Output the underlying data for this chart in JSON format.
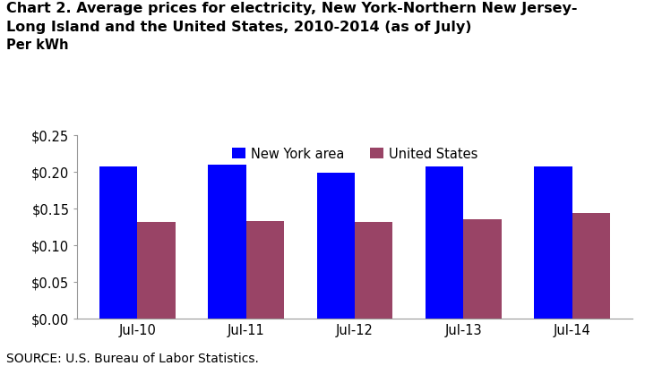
{
  "title_line1": "Chart 2. Average prices for electricity, New York-Northern New Jersey-",
  "title_line2": "Long Island and the United States, 2010-2014 (as of July)",
  "per_kwh": "Per kWh",
  "categories": [
    "Jul-10",
    "Jul-11",
    "Jul-12",
    "Jul-13",
    "Jul-14"
  ],
  "ny_values": [
    0.207,
    0.209,
    0.199,
    0.207,
    0.207
  ],
  "us_values": [
    0.131,
    0.133,
    0.131,
    0.135,
    0.143
  ],
  "ny_color": "#0000FF",
  "us_color": "#994466",
  "ylim": [
    0,
    0.25
  ],
  "yticks": [
    0.0,
    0.05,
    0.1,
    0.15,
    0.2,
    0.25
  ],
  "legend_labels": [
    "New York area",
    "United States"
  ],
  "source": "SOURCE: U.S. Bureau of Labor Statistics.",
  "bar_width": 0.35,
  "background_color": "#FFFFFF",
  "title_fontsize": 11.5,
  "label_fontsize": 10.5,
  "tick_fontsize": 10.5,
  "source_fontsize": 10
}
